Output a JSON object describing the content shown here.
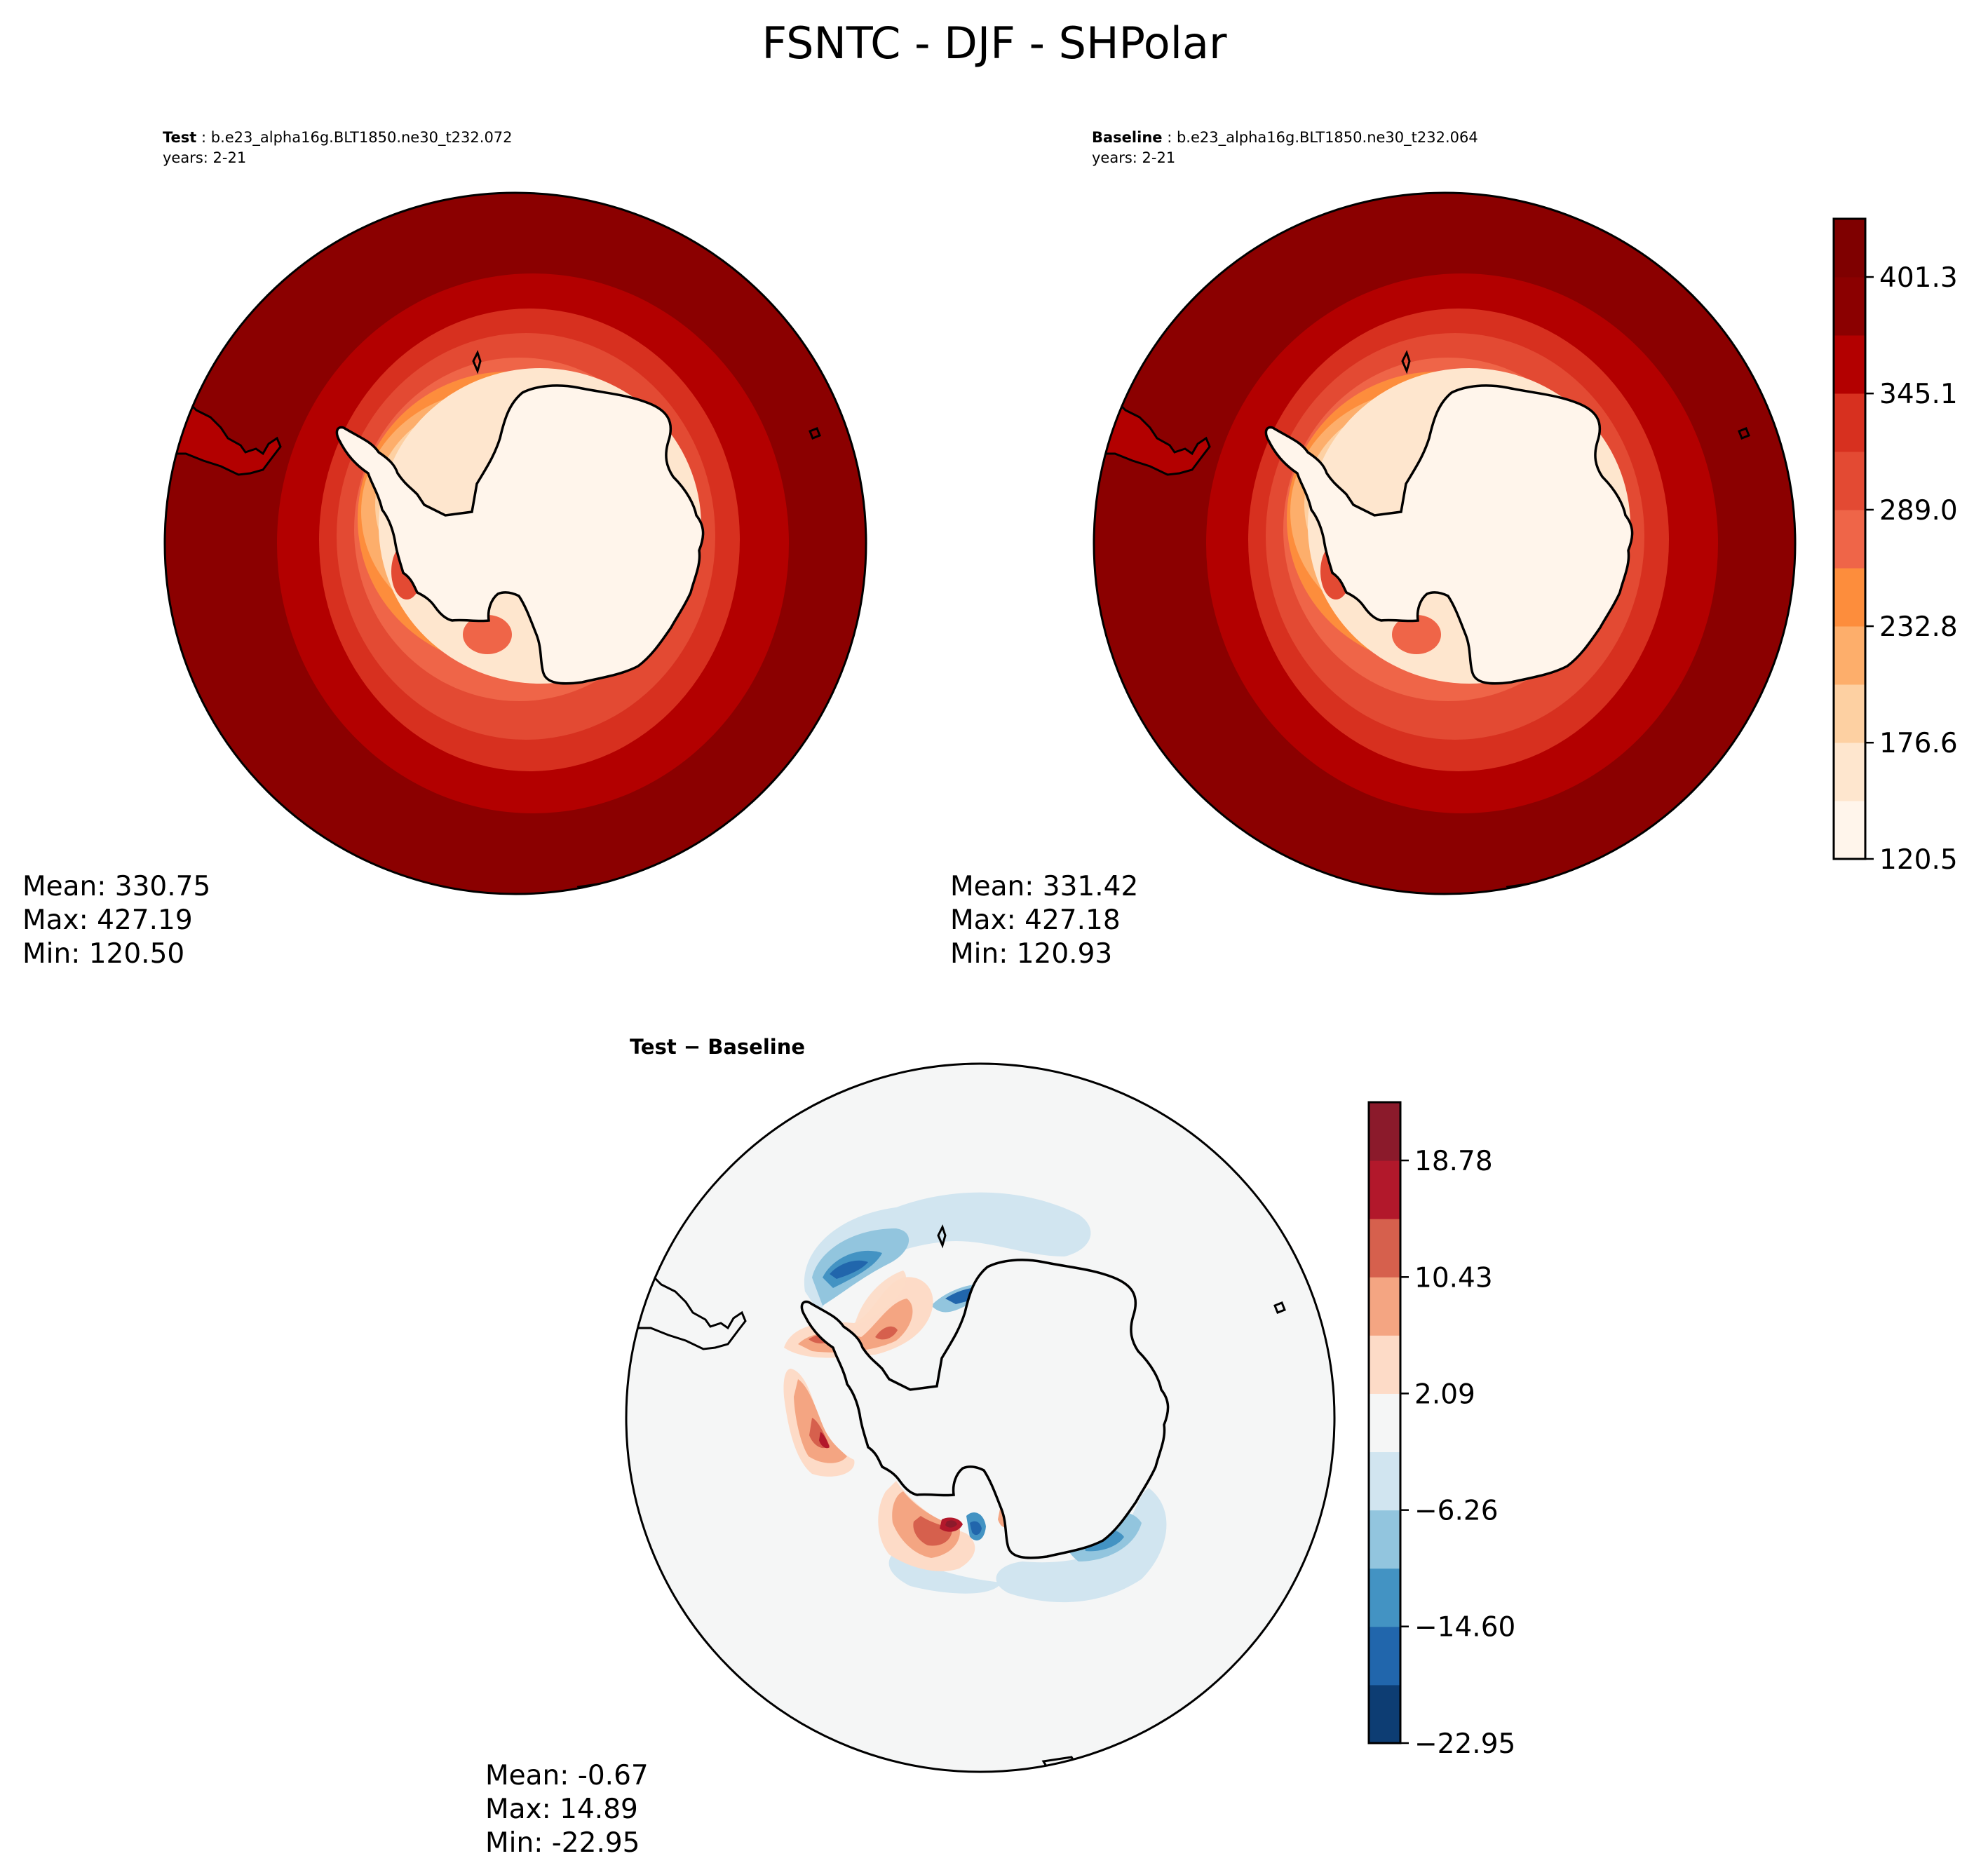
{
  "figure": {
    "title": "FSNTC - DJF - SHPolar"
  },
  "panels": {
    "test": {
      "label_bold": "Test",
      "label_rest": " : b.e23_alpha16g.BLT1850.ne30_t232.072",
      "years": "years: 2-21",
      "stats": [
        "Mean: 330.75",
        "Max: 427.19",
        "Min: 120.50"
      ],
      "mean": 330.75,
      "max": 427.19,
      "min": 120.5
    },
    "baseline": {
      "label_bold": "Baseline",
      "label_rest": " : b.e23_alpha16g.BLT1850.ne30_t232.064",
      "years": "years: 2-21",
      "stats": [
        "Mean: 331.42",
        "Max: 427.18",
        "Min: 120.93"
      ],
      "mean": 331.42,
      "max": 427.18,
      "min": 120.93
    },
    "diff": {
      "label": "Test − Baseline",
      "stats": [
        "Mean: -0.67",
        "Max: 14.89",
        "Min: -22.95"
      ],
      "mean": -0.67,
      "max": 14.89,
      "min": -22.95
    }
  },
  "colorbars": {
    "main": {
      "ticks": [
        "120.5",
        "176.6",
        "232.8",
        "289.0",
        "345.1",
        "401.3"
      ],
      "tick_values": [
        120.5,
        176.6,
        232.8,
        289.0,
        345.1,
        401.3
      ],
      "range": [
        120.5,
        429.4
      ],
      "colors": [
        "#fff5eb",
        "#fee6ce",
        "#fdd0a2",
        "#fdae6b",
        "#fd8d3c",
        "#ef6548",
        "#e34a33",
        "#d7301f",
        "#b30000",
        "#8b0000",
        "#7f0000"
      ]
    },
    "diff": {
      "ticks": [
        "−22.95",
        "−14.60",
        "−6.26",
        "2.09",
        "10.43",
        "18.78"
      ],
      "tick_values": [
        -22.95,
        -14.6,
        -6.26,
        2.09,
        10.43,
        18.78
      ],
      "range": [
        -22.95,
        22.95
      ],
      "colors": [
        "#0d3d73",
        "#2166ac",
        "#4393c3",
        "#92c5de",
        "#d1e5f0",
        "#f5f6f6",
        "#fddbc7",
        "#f4a582",
        "#d6604d",
        "#b2182b",
        "#8b1a2b"
      ]
    }
  }
}
